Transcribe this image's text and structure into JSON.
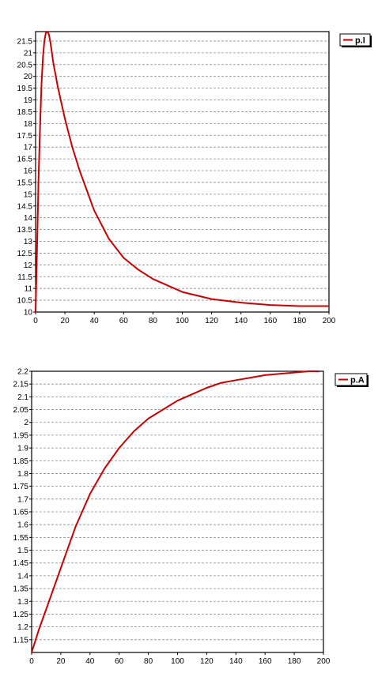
{
  "chart_data": [
    {
      "type": "line",
      "title": "",
      "xlabel": "",
      "ylabel": "",
      "xlim": [
        0,
        200
      ],
      "ylim": [
        10,
        21.9
      ],
      "x_ticks": [
        0,
        20,
        40,
        60,
        80,
        100,
        120,
        140,
        160,
        180,
        200
      ],
      "y_ticks": [
        10,
        10.5,
        11,
        11.5,
        12,
        12.5,
        13,
        13.5,
        14,
        14.5,
        15,
        15.5,
        16,
        16.5,
        17,
        17.5,
        18,
        18.5,
        19,
        19.5,
        20,
        20.5,
        21,
        21.5
      ],
      "grid": true,
      "legend_position": "top-right",
      "series": [
        {
          "name": "p.I",
          "color": "#cc0000",
          "x": [
            0,
            1,
            2,
            3,
            4,
            5,
            6,
            7,
            8,
            9,
            10,
            12,
            15,
            20,
            25,
            30,
            40,
            50,
            60,
            70,
            80,
            100,
            120,
            140,
            160,
            180,
            200
          ],
          "y": [
            10,
            12.8,
            15.6,
            17.8,
            19.6,
            20.8,
            21.5,
            21.85,
            21.9,
            21.8,
            21.5,
            20.6,
            19.6,
            18.2,
            17.0,
            16.0,
            14.3,
            13.1,
            12.3,
            11.8,
            11.4,
            10.85,
            10.55,
            10.4,
            10.3,
            10.25,
            10.25
          ]
        }
      ]
    },
    {
      "type": "line",
      "title": "",
      "xlabel": "",
      "ylabel": "",
      "xlim": [
        0,
        200
      ],
      "ylim": [
        1.1,
        2.2
      ],
      "x_ticks": [
        0,
        20,
        40,
        60,
        80,
        100,
        120,
        140,
        160,
        180,
        200
      ],
      "y_ticks": [
        1.15,
        1.2,
        1.25,
        1.3,
        1.35,
        1.4,
        1.45,
        1.5,
        1.55,
        1.6,
        1.65,
        1.7,
        1.75,
        1.8,
        1.85,
        1.9,
        1.95,
        2,
        2.05,
        2.1,
        2.15,
        2.2
      ],
      "grid": true,
      "legend_position": "top-right",
      "series": [
        {
          "name": "p.A",
          "color": "#cc0000",
          "x": [
            0,
            5,
            10,
            20,
            30,
            40,
            50,
            60,
            70,
            80,
            90,
            100,
            110,
            120,
            130,
            140,
            150,
            160,
            170,
            180,
            190,
            197
          ],
          "y": [
            1.1,
            1.19,
            1.27,
            1.43,
            1.59,
            1.72,
            1.82,
            1.9,
            1.965,
            2.015,
            2.05,
            2.085,
            2.11,
            2.135,
            2.155,
            2.165,
            2.175,
            2.185,
            2.19,
            2.195,
            2.2,
            2.2
          ]
        }
      ]
    }
  ]
}
